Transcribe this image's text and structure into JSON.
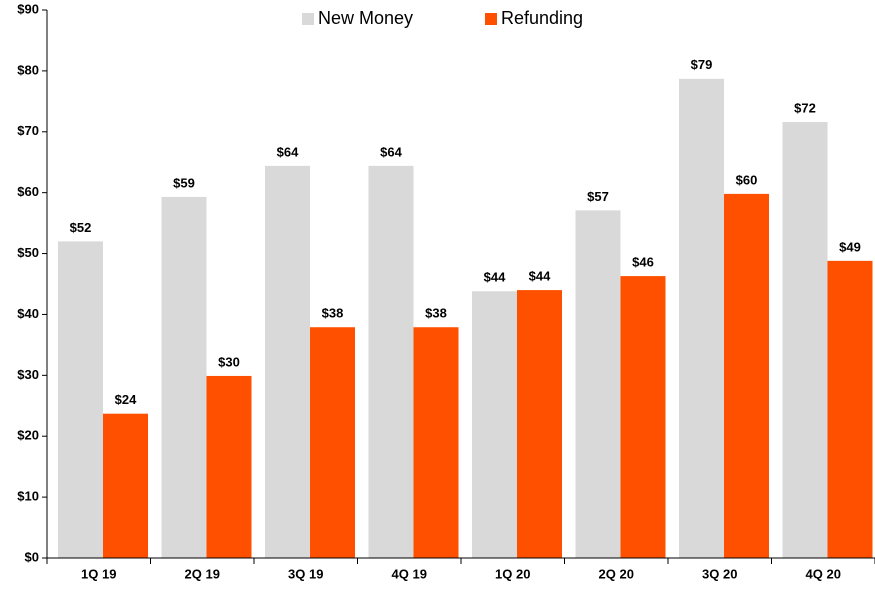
{
  "chart_data": {
    "type": "bar",
    "categories": [
      "1Q 19",
      "2Q 19",
      "3Q 19",
      "4Q 19",
      "1Q 20",
      "2Q 20",
      "3Q 20",
      "4Q 20"
    ],
    "series": [
      {
        "name": "New Money",
        "color": "#d9d9d9",
        "values": [
          52.0,
          59.3,
          64.4,
          64.4,
          43.8,
          57.1,
          78.7,
          71.6
        ],
        "value_labels": [
          "$52",
          "$59",
          "$64",
          "$64",
          "$44",
          "$57",
          "$79",
          "$72"
        ]
      },
      {
        "name": "Refunding",
        "color": "#ff5000",
        "values": [
          23.7,
          29.9,
          37.9,
          37.9,
          44.0,
          46.3,
          59.8,
          48.8
        ],
        "value_labels": [
          "$24",
          "$30",
          "$38",
          "$38",
          "$44",
          "$46",
          "$60",
          "$49"
        ]
      }
    ],
    "ylim": [
      0,
      90
    ],
    "yticks": [
      {
        "value": 0,
        "label": "$0"
      },
      {
        "value": 10,
        "label": "$10"
      },
      {
        "value": 20,
        "label": "$20"
      },
      {
        "value": 30,
        "label": "$30"
      },
      {
        "value": 40,
        "label": "$40"
      },
      {
        "value": 50,
        "label": "$50"
      },
      {
        "value": 60,
        "label": "$60"
      },
      {
        "value": 70,
        "label": "$70"
      },
      {
        "value": 80,
        "label": "$80"
      },
      {
        "value": 90,
        "label": "$90"
      }
    ],
    "grid": false,
    "legend": "top"
  }
}
